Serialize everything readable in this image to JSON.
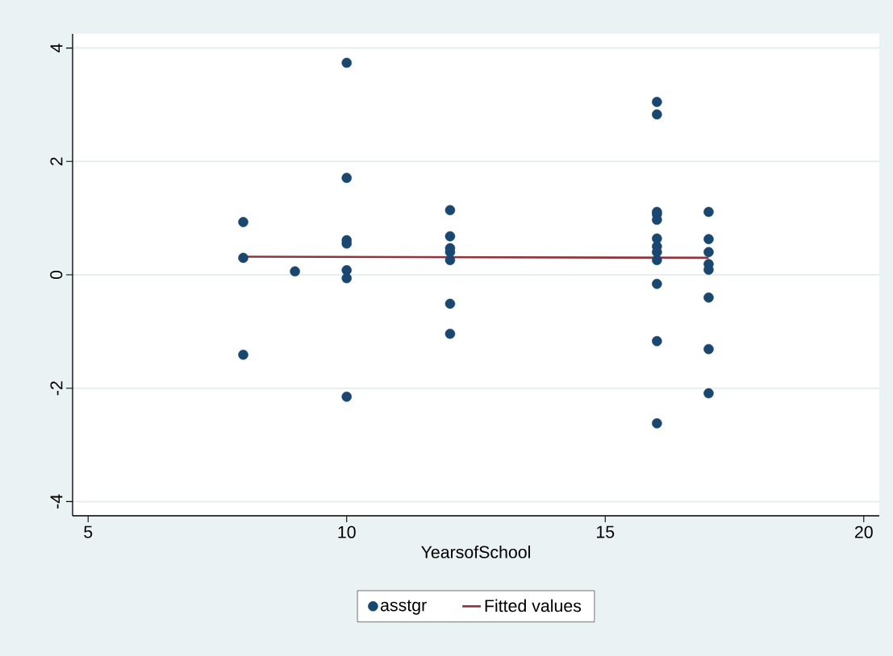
{
  "chart_data": {
    "type": "scatter",
    "xlabel": "YearsofSchool",
    "xlim": [
      4.7,
      20.3
    ],
    "ylim": [
      -4.25,
      4.25
    ],
    "xticks": [
      5,
      10,
      15,
      20
    ],
    "yticks": [
      -4,
      -2,
      0,
      2,
      4
    ],
    "grid": "y",
    "legend": "bottom",
    "series": [
      {
        "name": "asstgr",
        "marker": "circle",
        "color": "#1a476f",
        "x": [
          8,
          8,
          8,
          9,
          10,
          10,
          10,
          10,
          10,
          10,
          10,
          12,
          12,
          12,
          12,
          12,
          12,
          12,
          16,
          16,
          16,
          16,
          16,
          16,
          16,
          16,
          16,
          16,
          16,
          16,
          17,
          17,
          17,
          17,
          17,
          17,
          17,
          17
        ],
        "values": [
          0.93,
          0.3,
          -1.41,
          0.06,
          3.74,
          1.71,
          0.61,
          0.55,
          0.08,
          -0.06,
          -2.15,
          1.14,
          0.68,
          0.47,
          0.4,
          0.26,
          -0.51,
          -1.04,
          3.05,
          2.83,
          1.11,
          1.07,
          0.97,
          0.64,
          0.5,
          0.4,
          0.26,
          -0.16,
          -1.17,
          -2.62,
          1.11,
          0.63,
          0.4,
          0.19,
          0.09,
          -0.4,
          -1.31,
          -2.09
        ]
      },
      {
        "name": "Fitted values",
        "type": "line",
        "marker": "none",
        "color": "#90353b",
        "x": [
          8,
          17
        ],
        "values": [
          0.32,
          0.3
        ]
      }
    ]
  }
}
